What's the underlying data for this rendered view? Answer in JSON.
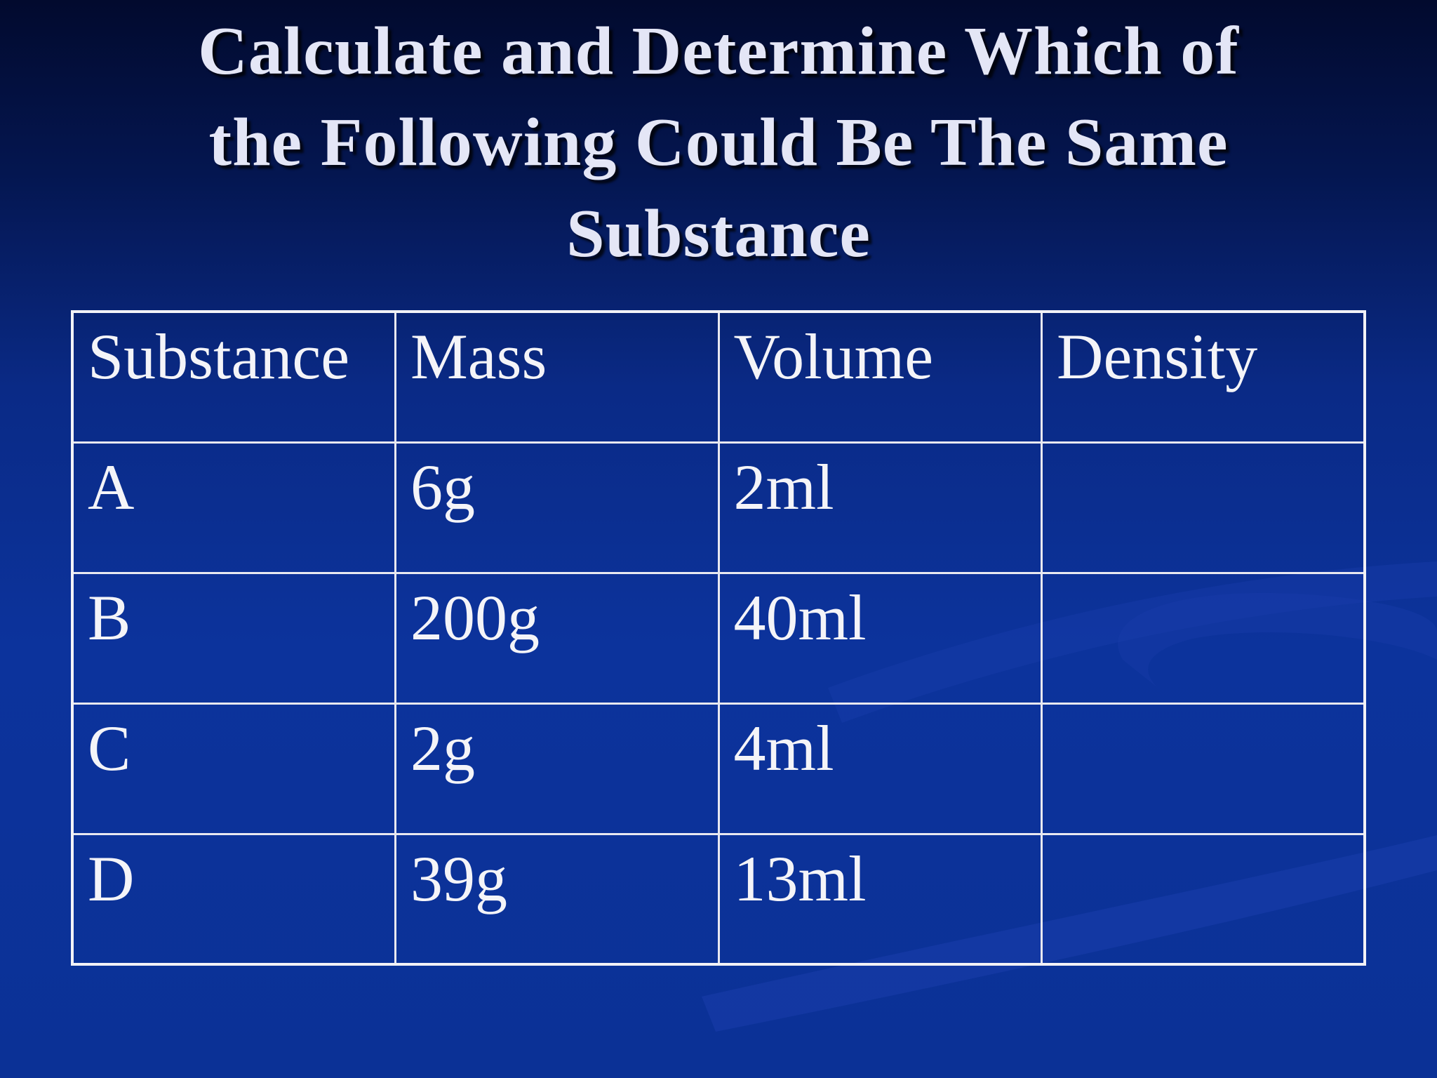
{
  "slide": {
    "title_lines": [
      "Calculate and Determine Which of",
      "the Following Could Be The Same",
      "Substance"
    ]
  },
  "table": {
    "headers": [
      "Substance",
      "Mass",
      "Volume",
      "Density"
    ],
    "rows": [
      [
        "A",
        "6g",
        "2ml",
        ""
      ],
      [
        "B",
        "200g",
        "40ml",
        ""
      ],
      [
        "C",
        "2g",
        "4ml",
        ""
      ],
      [
        "D",
        "39g",
        "13ml",
        ""
      ]
    ]
  },
  "colors": {
    "background_top": "#020a2e",
    "background_main": "#0c339c",
    "text": "#f4f4f8",
    "grid_lines": "#e8e8f0"
  }
}
